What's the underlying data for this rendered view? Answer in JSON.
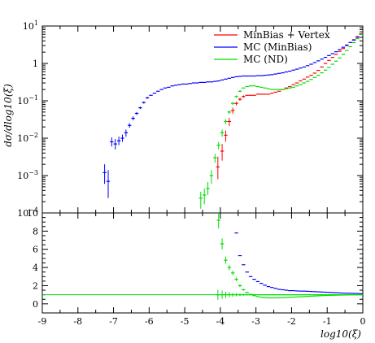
{
  "chart_data": [
    {
      "type": "scatter",
      "panel": "main",
      "ylabel": "dσ/dlog10(ξ)",
      "xlabel": "",
      "xlim": [
        -9,
        0
      ],
      "ylim": [
        0.0001,
        10
      ],
      "yscale": "log",
      "grid": false,
      "legend_position": "top-right",
      "y_ticks": [
        {
          "v": 0.0001,
          "base": "10",
          "exp": "−4"
        },
        {
          "v": 0.001,
          "base": "10",
          "exp": "−3"
        },
        {
          "v": 0.01,
          "base": "10",
          "exp": "−2"
        },
        {
          "v": 0.1,
          "base": "10",
          "exp": "−1"
        },
        {
          "v": 1,
          "base": "1",
          "exp": ""
        },
        {
          "v": 10,
          "base": "10",
          "exp": "1"
        }
      ],
      "series": [
        {
          "name": "MinBias + Vertex",
          "color": "#ff0000",
          "x": [
            -4.07,
            -3.95,
            -3.85,
            -3.75,
            -3.65,
            -3.55,
            -3.45,
            -3.35,
            -3.25,
            -3.15,
            -3.05,
            -2.95,
            -2.85,
            -2.75,
            -2.65,
            -2.55,
            -2.45,
            -2.35,
            -2.25,
            -2.15,
            -2.05,
            -1.95,
            -1.85,
            -1.75,
            -1.65,
            -1.55,
            -1.45,
            -1.35,
            -1.25,
            -1.15,
            -1.05,
            -0.95,
            -0.85,
            -0.75,
            -0.65,
            -0.55,
            -0.45,
            -0.35,
            -0.25,
            -0.15,
            -0.05
          ],
          "y": [
            0.0017,
            0.0045,
            0.012,
            0.028,
            0.055,
            0.085,
            0.11,
            0.13,
            0.14,
            0.14,
            0.14,
            0.15,
            0.15,
            0.15,
            0.15,
            0.16,
            0.17,
            0.18,
            0.2,
            0.22,
            0.24,
            0.27,
            0.3,
            0.34,
            0.38,
            0.43,
            0.48,
            0.55,
            0.65,
            0.8,
            1.0,
            1.2,
            1.45,
            1.75,
            2.1,
            2.5,
            3.0,
            3.6,
            4.3,
            5.2,
            6.2
          ],
          "err_lo": [
            0.0009,
            0.002,
            0.004,
            0.007,
            0.01,
            0.01,
            0.01,
            0.01,
            0,
            0,
            0,
            0,
            0,
            0,
            0,
            0,
            0,
            0,
            0,
            0,
            0,
            0,
            0,
            0,
            0,
            0,
            0,
            0,
            0,
            0,
            0,
            0,
            0,
            0,
            0,
            0,
            0,
            0,
            0,
            0,
            0
          ],
          "err_hi": [
            0.0015,
            0.0025,
            0.004,
            0.007,
            0.01,
            0.01,
            0.01,
            0.01,
            0,
            0,
            0,
            0,
            0,
            0,
            0,
            0,
            0,
            0,
            0,
            0,
            0,
            0,
            0,
            0,
            0,
            0,
            0,
            0,
            0,
            0,
            0,
            0,
            0,
            0,
            0,
            0,
            0,
            0,
            0,
            0,
            0
          ]
        },
        {
          "name": "MC (MinBias)",
          "color": "#0000ff",
          "x": [
            -7.25,
            -7.15,
            -7.05,
            -6.95,
            -6.85,
            -6.75,
            -6.65,
            -6.55,
            -6.45,
            -6.35,
            -6.25,
            -6.15,
            -6.05,
            -5.95,
            -5.85,
            -5.75,
            -5.65,
            -5.55,
            -5.45,
            -5.35,
            -5.25,
            -5.15,
            -5.05,
            -4.95,
            -4.85,
            -4.75,
            -4.65,
            -4.55,
            -4.45,
            -4.35,
            -4.25,
            -4.15,
            -4.05,
            -3.95,
            -3.85,
            -3.75,
            -3.65,
            -3.55,
            -3.45,
            -3.35,
            -3.25,
            -3.15,
            -3.05,
            -2.95,
            -2.85,
            -2.75,
            -2.65,
            -2.55,
            -2.45,
            -2.35,
            -2.25,
            -2.15,
            -2.05,
            -1.95,
            -1.85,
            -1.75,
            -1.65,
            -1.55,
            -1.45,
            -1.35,
            -1.25,
            -1.15,
            -1.05,
            -0.95,
            -0.85,
            -0.75,
            -0.65,
            -0.55,
            -0.45,
            -0.35,
            -0.25,
            -0.15,
            -0.05
          ],
          "y": [
            0.0012,
            0.0007,
            0.008,
            0.007,
            0.0085,
            0.01,
            0.014,
            0.022,
            0.034,
            0.046,
            0.065,
            0.09,
            0.12,
            0.14,
            0.16,
            0.18,
            0.2,
            0.22,
            0.23,
            0.25,
            0.26,
            0.27,
            0.28,
            0.28,
            0.29,
            0.3,
            0.3,
            0.31,
            0.31,
            0.32,
            0.32,
            0.33,
            0.34,
            0.36,
            0.38,
            0.4,
            0.42,
            0.44,
            0.45,
            0.46,
            0.46,
            0.46,
            0.46,
            0.47,
            0.47,
            0.48,
            0.49,
            0.5,
            0.52,
            0.54,
            0.56,
            0.59,
            0.62,
            0.66,
            0.7,
            0.75,
            0.8,
            0.87,
            0.95,
            1.05,
            1.17,
            1.3,
            1.45,
            1.62,
            1.82,
            2.05,
            2.35,
            2.7,
            3.1,
            3.6,
            4.2,
            5.0,
            6.0
          ],
          "err_lo": [
            0.0006,
            0.00045,
            0.002,
            0.002,
            0.002,
            0.002,
            0.003,
            0.003,
            0.004,
            0.004,
            0.005,
            0.006,
            0.007,
            0,
            0,
            0,
            0,
            0,
            0,
            0,
            0,
            0,
            0,
            0,
            0,
            0,
            0,
            0,
            0,
            0,
            0,
            0,
            0,
            0,
            0,
            0,
            0,
            0,
            0,
            0,
            0,
            0,
            0,
            0,
            0,
            0,
            0,
            0,
            0,
            0,
            0,
            0,
            0,
            0,
            0,
            0,
            0,
            0,
            0,
            0,
            0,
            0,
            0,
            0,
            0,
            0,
            0,
            0,
            0,
            0,
            0,
            0,
            0
          ],
          "err_hi": [
            0.0008,
            0.0007,
            0.0025,
            0.0025,
            0.0025,
            0.0025,
            0.003,
            0.003,
            0.004,
            0.004,
            0.005,
            0.006,
            0.007,
            0,
            0,
            0,
            0,
            0,
            0,
            0,
            0,
            0,
            0,
            0,
            0,
            0,
            0,
            0,
            0,
            0,
            0,
            0,
            0,
            0,
            0,
            0,
            0,
            0,
            0,
            0,
            0,
            0,
            0,
            0,
            0,
            0,
            0,
            0,
            0,
            0,
            0,
            0,
            0,
            0,
            0,
            0,
            0,
            0,
            0,
            0,
            0,
            0,
            0,
            0,
            0,
            0,
            0,
            0,
            0,
            0,
            0,
            0,
            0
          ]
        },
        {
          "name": "MC (ND)",
          "color": "#00dd00",
          "x": [
            -4.55,
            -4.45,
            -4.35,
            -4.25,
            -4.15,
            -4.05,
            -3.95,
            -3.85,
            -3.75,
            -3.65,
            -3.55,
            -3.45,
            -3.35,
            -3.25,
            -3.15,
            -3.05,
            -2.95,
            -2.85,
            -2.75,
            -2.65,
            -2.55,
            -2.45,
            -2.35,
            -2.25,
            -2.15,
            -2.05,
            -1.95,
            -1.85,
            -1.75,
            -1.65,
            -1.55,
            -1.45,
            -1.35,
            -1.25,
            -1.15,
            -1.05,
            -0.95,
            -0.85,
            -0.75,
            -0.65,
            -0.55,
            -0.45,
            -0.35,
            -0.25,
            -0.15,
            -0.05
          ],
          "y": [
            0.00025,
            0.0003,
            0.00045,
            0.001,
            0.003,
            0.0065,
            0.014,
            0.028,
            0.05,
            0.085,
            0.13,
            0.18,
            0.22,
            0.24,
            0.25,
            0.25,
            0.24,
            0.23,
            0.22,
            0.21,
            0.2,
            0.2,
            0.2,
            0.2,
            0.21,
            0.22,
            0.23,
            0.25,
            0.27,
            0.3,
            0.33,
            0.37,
            0.42,
            0.48,
            0.56,
            0.66,
            0.78,
            0.95,
            1.15,
            1.4,
            1.75,
            2.2,
            2.8,
            3.6,
            4.6,
            6.0
          ],
          "err_lo": [
            0.00012,
            0.00013,
            0.00015,
            0.0004,
            0.0008,
            0.0015,
            0.003,
            0.004,
            0.005,
            0.008,
            0.01,
            0.01,
            0,
            0,
            0,
            0,
            0,
            0,
            0,
            0,
            0,
            0,
            0,
            0,
            0,
            0,
            0,
            0,
            0,
            0,
            0,
            0,
            0,
            0,
            0,
            0,
            0,
            0,
            0,
            0,
            0,
            0,
            0,
            0,
            0,
            0
          ],
          "err_hi": [
            0.00012,
            0.00015,
            0.00022,
            0.0004,
            0.0008,
            0.0015,
            0.003,
            0.004,
            0.005,
            0.008,
            0.01,
            0.01,
            0,
            0,
            0,
            0,
            0,
            0,
            0,
            0,
            0,
            0,
            0,
            0,
            0,
            0,
            0,
            0,
            0,
            0,
            0,
            0,
            0,
            0,
            0,
            0,
            0,
            0,
            0,
            0,
            0,
            0,
            0,
            0,
            0,
            0
          ]
        }
      ]
    },
    {
      "type": "scatter",
      "panel": "ratio",
      "xlabel": "log10(ξ)",
      "ylabel": "",
      "xlim": [
        -9,
        0
      ],
      "ylim": [
        -1,
        10
      ],
      "x_ticks": [
        "-9",
        "-8",
        "-7",
        "-6",
        "-5",
        "-4",
        "-3",
        "-2",
        "-1",
        "0"
      ],
      "y_ticks": [
        "0",
        "2",
        "4",
        "6",
        "8",
        "10"
      ],
      "reference_line": 1,
      "grid": false,
      "series": [
        {
          "name": "MC (MinBias)",
          "color": "#0000ff",
          "x": [
            -3.55,
            -3.45,
            -3.35,
            -3.25,
            -3.15,
            -3.05,
            -2.95,
            -2.85,
            -2.75,
            -2.65,
            -2.55,
            -2.45,
            -2.35,
            -2.25,
            -2.15,
            -2.05,
            -1.95,
            -1.85,
            -1.75,
            -1.65,
            -1.55,
            -1.45,
            -1.35,
            -1.25,
            -1.15,
            -1.05,
            -0.95,
            -0.85,
            -0.75,
            -0.65,
            -0.55,
            -0.45,
            -0.35,
            -0.25,
            -0.15,
            -0.05
          ],
          "y": [
            7.8,
            5.3,
            4.3,
            3.5,
            3.0,
            2.7,
            2.45,
            2.25,
            2.05,
            1.9,
            1.8,
            1.7,
            1.6,
            1.55,
            1.5,
            1.45,
            1.45,
            1.42,
            1.4,
            1.4,
            1.38,
            1.36,
            1.34,
            1.32,
            1.3,
            1.28,
            1.26,
            1.24,
            1.22,
            1.2,
            1.18,
            1.17,
            1.16,
            1.15,
            1.14,
            1.12
          ]
        },
        {
          "name": "MC (ND)",
          "color": "#00dd00",
          "x": [
            -4.05,
            -3.95,
            -3.85,
            -3.75,
            -3.65,
            -3.55,
            -3.45,
            -3.35,
            -3.25,
            -3.15,
            -3.05,
            -2.95,
            -2.85,
            -2.75,
            -2.65,
            -2.55,
            -2.45,
            -2.35,
            -2.25,
            -2.15,
            -2.05,
            -1.95,
            -1.85,
            -1.75,
            -1.65,
            -1.55,
            -1.45,
            -1.35,
            -1.25,
            -1.15,
            -1.05,
            -0.95,
            -0.85,
            -0.75,
            -0.65,
            -0.55,
            -0.45,
            -0.35,
            -0.25,
            -0.15,
            -0.05
          ],
          "y": [
            9.2,
            6.6,
            4.8,
            4.0,
            3.4,
            2.7,
            2.0,
            1.55,
            1.25,
            1.05,
            0.9,
            0.8,
            0.72,
            0.68,
            0.66,
            0.65,
            0.66,
            0.67,
            0.68,
            0.7,
            0.72,
            0.74,
            0.76,
            0.78,
            0.8,
            0.82,
            0.84,
            0.86,
            0.88,
            0.9,
            0.92,
            0.93,
            0.94,
            0.95,
            0.96,
            0.97,
            0.98,
            0.99,
            1.0,
            1.0,
            1.01
          ],
          "err": [
            0.9,
            0.6,
            0.4,
            0.3,
            0.25,
            0.2,
            0.15,
            0.1,
            0.08,
            0.06,
            0.05,
            0.04,
            0.03,
            0.03,
            0.03,
            0.02,
            0.02,
            0.02,
            0.02,
            0.02,
            0.02,
            0.02,
            0.02,
            0.02,
            0.02,
            0.02,
            0.02,
            0.02,
            0.02,
            0.02,
            0.02,
            0.02,
            0.02,
            0.02,
            0.02,
            0.02,
            0.02,
            0.02,
            0.02,
            0.02,
            0.02
          ]
        },
        {
          "name": "MinBias + Vertex",
          "color": "#00dd00",
          "x": [
            -4.07,
            -3.95,
            -3.85,
            -3.75,
            -3.65,
            -3.55,
            -3.45,
            -3.35,
            -3.25,
            -3.15,
            -3.05,
            -2.95,
            -2.85,
            -2.75,
            -2.65,
            -2.55,
            -2.45,
            -2.35,
            -2.25,
            -2.15,
            -2.05,
            -1.95,
            -1.85,
            -1.75,
            -1.65,
            -1.55,
            -1.45,
            -1.35,
            -1.25,
            -1.15,
            -1.05,
            -0.95,
            -0.85,
            -0.75,
            -0.65,
            -0.55,
            -0.45,
            -0.35,
            -0.25,
            -0.15,
            -0.05
          ],
          "y": [
            1,
            1,
            1,
            1,
            1,
            1,
            1,
            1,
            1,
            1,
            1,
            1,
            1,
            1,
            1,
            1,
            1,
            1,
            1,
            1,
            1,
            1,
            1,
            1,
            1,
            1,
            1,
            1,
            1,
            1,
            1,
            1,
            1,
            1,
            1,
            1,
            1,
            1,
            1,
            1,
            1
          ],
          "err": [
            0.55,
            0.45,
            0.35,
            0.28,
            0.22,
            0.18,
            0.14,
            0.1,
            0.08,
            0.06,
            0.05,
            0.04,
            0.03,
            0.03,
            0.03,
            0.02,
            0.02,
            0.02,
            0.02,
            0.02,
            0.02,
            0.02,
            0.02,
            0.02,
            0.02,
            0.02,
            0.02,
            0.02,
            0.02,
            0.02,
            0.02,
            0.02,
            0.02,
            0.02,
            0.02,
            0.02,
            0.02,
            0.02,
            0.02,
            0.02,
            0.02
          ]
        }
      ]
    }
  ]
}
